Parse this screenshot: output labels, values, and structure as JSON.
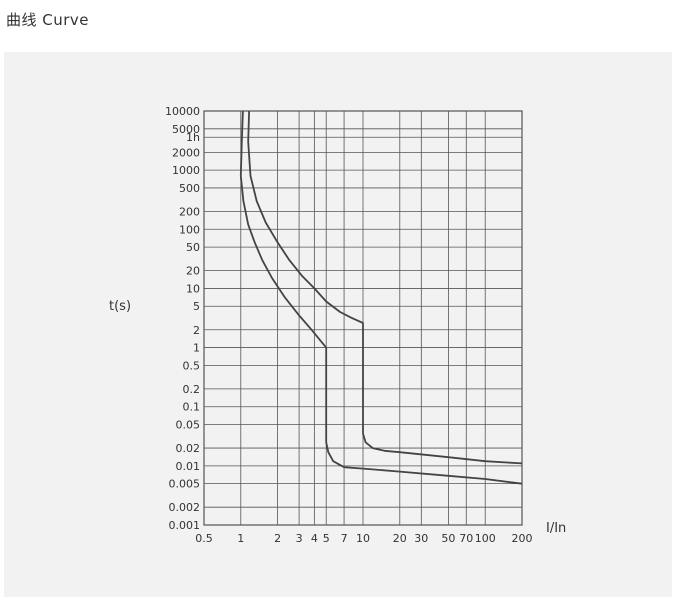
{
  "page": {
    "title": "曲线 Curve"
  },
  "colors": {
    "panel": "#f2f2f2",
    "grid": "#555555",
    "curve": "#444444",
    "text": "#333333"
  },
  "chart_data": {
    "type": "line",
    "title": "",
    "xlabel": "I/In",
    "ylabel": "t(s)",
    "x_scale": "log",
    "y_scale": "log",
    "xlim": [
      0.5,
      200
    ],
    "ylim": [
      0.001,
      10000
    ],
    "grid": true,
    "x_ticks": [
      {
        "label": "0.5",
        "value": 0.5
      },
      {
        "label": "1",
        "value": 1
      },
      {
        "label": "2",
        "value": 2
      },
      {
        "label": "3",
        "value": 3
      },
      {
        "label": "4",
        "value": 4
      },
      {
        "label": "5",
        "value": 5
      },
      {
        "label": "7",
        "value": 7
      },
      {
        "label": "10",
        "value": 10
      },
      {
        "label": "20",
        "value": 20
      },
      {
        "label": "30",
        "value": 30
      },
      {
        "label": "50",
        "value": 50
      },
      {
        "label": "70",
        "value": 70
      },
      {
        "label": "100",
        "value": 100
      },
      {
        "label": "200",
        "value": 200
      }
    ],
    "y_ticks": [
      {
        "label": "10000",
        "value": 10000
      },
      {
        "label": "5000",
        "value": 5000
      },
      {
        "label": "1h",
        "value": 3600
      },
      {
        "label": "2000",
        "value": 2000
      },
      {
        "label": "1000",
        "value": 1000
      },
      {
        "label": "500",
        "value": 500
      },
      {
        "label": "200",
        "value": 200
      },
      {
        "label": "100",
        "value": 100
      },
      {
        "label": "50",
        "value": 50
      },
      {
        "label": "20",
        "value": 20
      },
      {
        "label": "10",
        "value": 10
      },
      {
        "label": "5",
        "value": 5
      },
      {
        "label": "2",
        "value": 2
      },
      {
        "label": "1",
        "value": 1
      },
      {
        "label": "0.5",
        "value": 0.5
      },
      {
        "label": "0.2",
        "value": 0.2
      },
      {
        "label": "0.1",
        "value": 0.1
      },
      {
        "label": "0.05",
        "value": 0.05
      },
      {
        "label": "0.02",
        "value": 0.02
      },
      {
        "label": "0.01",
        "value": 0.01
      },
      {
        "label": "0.005",
        "value": 0.005
      },
      {
        "label": "0.002",
        "value": 0.002
      },
      {
        "label": "0.001",
        "value": 0.001
      }
    ],
    "series": [
      {
        "points": [
          [
            1.04,
            10000
          ],
          [
            1.02,
            3000
          ],
          [
            1.0,
            800
          ],
          [
            1.05,
            300
          ],
          [
            1.15,
            120
          ],
          [
            1.3,
            60
          ],
          [
            1.5,
            30
          ],
          [
            1.8,
            15
          ],
          [
            2.3,
            7
          ],
          [
            3,
            3.5
          ],
          [
            3.8,
            2
          ],
          [
            4.5,
            1.3
          ],
          [
            5,
            1.0
          ],
          [
            5,
            0.1
          ],
          [
            5,
            0.025
          ],
          [
            5.2,
            0.017
          ],
          [
            5.7,
            0.012
          ],
          [
            7,
            0.0095
          ],
          [
            10,
            0.009
          ],
          [
            20,
            0.008
          ],
          [
            50,
            0.0068
          ],
          [
            100,
            0.006
          ],
          [
            200,
            0.005
          ]
        ]
      },
      {
        "points": [
          [
            1.17,
            10000
          ],
          [
            1.15,
            3000
          ],
          [
            1.2,
            800
          ],
          [
            1.35,
            300
          ],
          [
            1.6,
            130
          ],
          [
            2,
            60
          ],
          [
            2.5,
            30
          ],
          [
            3.2,
            16
          ],
          [
            4,
            10
          ],
          [
            5,
            6
          ],
          [
            6.5,
            4
          ],
          [
            8,
            3.2
          ],
          [
            10,
            2.6
          ],
          [
            10,
            0.5
          ],
          [
            10,
            0.035
          ],
          [
            10.5,
            0.025
          ],
          [
            12,
            0.02
          ],
          [
            15,
            0.018
          ],
          [
            20,
            0.017
          ],
          [
            50,
            0.014
          ],
          [
            100,
            0.012
          ],
          [
            200,
            0.011
          ]
        ]
      }
    ]
  }
}
